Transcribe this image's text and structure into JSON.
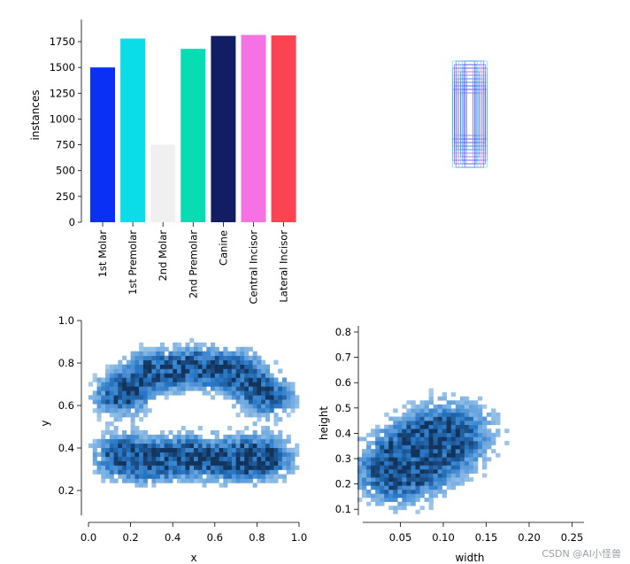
{
  "chart_data": [
    {
      "type": "bar",
      "ylabel": "instances",
      "ylim": [
        0,
        1900
      ],
      "yticks": [
        0,
        250,
        500,
        750,
        1000,
        1250,
        1500,
        1750
      ],
      "categories": [
        "1st Molar",
        "1st Premolar",
        "2nd Molar",
        "2nd Premolar",
        "Canine",
        "Central Incisor",
        "Lateral Incisor"
      ],
      "values": [
        1500,
        1780,
        750,
        1680,
        1805,
        1815,
        1810
      ],
      "colors": [
        "#0a2ff5",
        "#0adce8",
        "#f0f0f0",
        "#08dcb2",
        "#111e63",
        "#f572e3",
        "#fb4352"
      ]
    },
    {
      "type": "box-overlay",
      "description": "Overlaid normalized bounding boxes centered at (0.5, 0.5)",
      "box_widths": [
        0.02,
        0.03,
        0.04,
        0.05,
        0.06,
        0.07,
        0.08,
        0.09,
        0.1,
        0.11
      ],
      "box_heights": [
        0.3,
        0.35,
        0.4,
        0.45,
        0.5,
        0.55,
        0.6,
        0.65,
        0.7,
        0.75
      ],
      "colors": [
        "#0adce8",
        "#111e63",
        "#f572e3",
        "#fb4352",
        "#0a2ff5",
        "#08dcb2"
      ]
    },
    {
      "type": "heatmap",
      "xlabel": "x",
      "ylabel": "y",
      "xlim": [
        0.0,
        1.0
      ],
      "ylim": [
        0.05,
        1.0
      ],
      "xticks": [
        "0.0",
        "0.2",
        "0.4",
        "0.6",
        "0.8",
        "1.0"
      ],
      "yticks": [
        "0.2",
        "0.4",
        "0.6",
        "0.8",
        "1.0"
      ],
      "density_centers": [
        {
          "x": 0.15,
          "y": 0.65,
          "w": 1.0
        },
        {
          "x": 0.3,
          "y": 0.76,
          "w": 1.0
        },
        {
          "x": 0.5,
          "y": 0.78,
          "w": 1.0
        },
        {
          "x": 0.7,
          "y": 0.76,
          "w": 1.0
        },
        {
          "x": 0.85,
          "y": 0.65,
          "w": 1.0
        },
        {
          "x": 0.15,
          "y": 0.36,
          "w": 1.0
        },
        {
          "x": 0.3,
          "y": 0.34,
          "w": 0.9
        },
        {
          "x": 0.45,
          "y": 0.36,
          "w": 0.6
        },
        {
          "x": 0.55,
          "y": 0.36,
          "w": 0.6
        },
        {
          "x": 0.7,
          "y": 0.34,
          "w": 0.9
        },
        {
          "x": 0.85,
          "y": 0.36,
          "w": 1.0
        }
      ]
    },
    {
      "type": "heatmap",
      "xlabel": "width",
      "ylabel": "height",
      "xlim": [
        0.0,
        0.27
      ],
      "ylim": [
        0.05,
        0.85
      ],
      "xticks": [
        "0.05",
        "0.10",
        "0.15",
        "0.20",
        "0.25"
      ],
      "yticks": [
        "0.1",
        "0.2",
        "0.3",
        "0.4",
        "0.5",
        "0.6",
        "0.7",
        "0.8"
      ],
      "density_centers": [
        {
          "x": 0.045,
          "y": 0.25,
          "w": 1.0
        },
        {
          "x": 0.085,
          "y": 0.35,
          "w": 1.0
        },
        {
          "x": 0.12,
          "y": 0.42,
          "w": 0.5
        }
      ]
    }
  ],
  "watermark": "CSDN @AI小怪兽"
}
